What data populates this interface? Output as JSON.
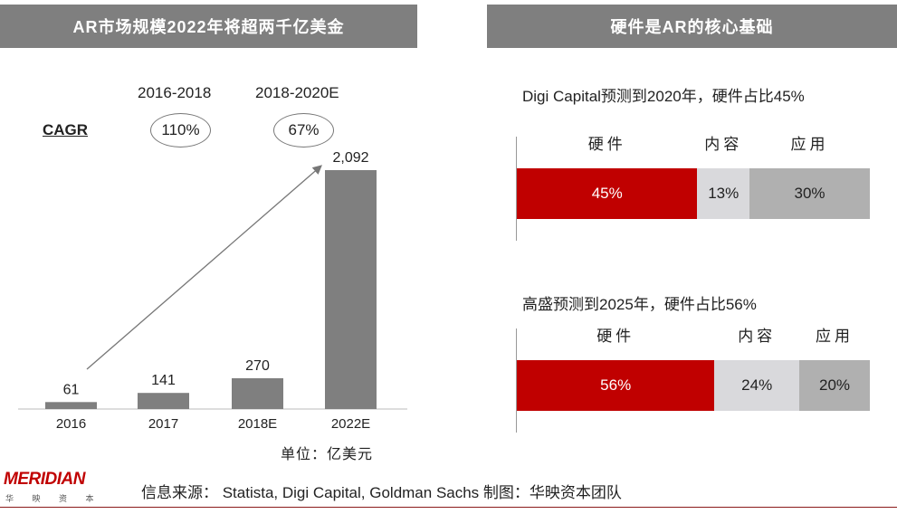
{
  "left_title": "AR市场规模2022年将超两千亿美金",
  "right_title": "硬件是AR的核心基础",
  "cagr": {
    "label": "CAGR",
    "periods": [
      {
        "label": "2016-2018",
        "value": "110%"
      },
      {
        "label": "2018-2020E",
        "value": "67%"
      }
    ]
  },
  "unit": "单位：亿美元",
  "chart_data": [
    {
      "type": "bar",
      "categories": [
        "2016",
        "2017",
        "2018E",
        "2022E"
      ],
      "values": [
        61,
        141,
        270,
        2092
      ],
      "value_labels": [
        "61",
        "141",
        "270",
        "2,092"
      ],
      "ylabel": "",
      "color": "#7f7f7f",
      "grid": false
    },
    {
      "type": "bar",
      "orientation": "horizontal-stacked",
      "title": "Digi Capital预测到2020年，硬件占比45%",
      "series": [
        {
          "name": "硬件",
          "value": 45,
          "label": "45%",
          "color": "#c00000"
        },
        {
          "name": "内容",
          "value": 13,
          "label": "13%",
          "color": "#d9d9dc"
        },
        {
          "name": "应用",
          "value": 30,
          "label": "30%",
          "color": "#b0b0b0"
        }
      ]
    },
    {
      "type": "bar",
      "orientation": "horizontal-stacked",
      "title": "高盛预测到2025年，硬件占比56%",
      "series": [
        {
          "name": "硬件",
          "value": 56,
          "label": "56%",
          "color": "#c00000"
        },
        {
          "name": "内容",
          "value": 24,
          "label": "24%",
          "color": "#d9d9dc"
        },
        {
          "name": "应用",
          "value": 20,
          "label": "20%",
          "color": "#b0b0b0"
        }
      ]
    }
  ],
  "footer": {
    "logo": "MERIDIAN",
    "logo_sub": "华 映 资 本",
    "source": "信息来源：  Statista, Digi Capital, Goldman Sachs   制图：华映资本团队"
  }
}
